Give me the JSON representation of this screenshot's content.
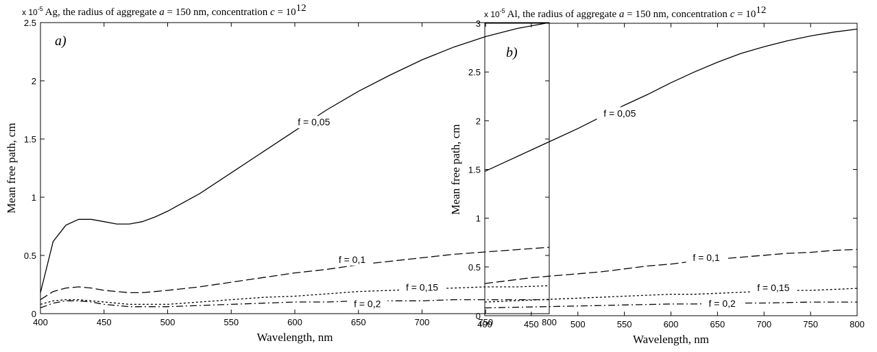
{
  "chart_data": [
    {
      "type": "line",
      "title_prefix": "Ag, the radius of aggregate ",
      "title_var_a": "a",
      "title_mid": " = 150 nm, concentration ",
      "title_var_c": "c",
      "title_eq": " = 10",
      "title_exp": "12",
      "multiplier_base": "x 10",
      "multiplier_exp": "-5",
      "panel_label": "a)",
      "xlabel": "Wavelength, nm",
      "ylabel": "Mean free path, cm",
      "xlim": [
        400,
        800
      ],
      "ylim": [
        0,
        2.5
      ],
      "xticks": [
        "400",
        "450",
        "500",
        "550",
        "600",
        "650",
        "700",
        "750",
        "800"
      ],
      "yticks": [
        "0",
        "0.5",
        "1",
        "1.5",
        "2",
        "2.5"
      ],
      "grid": false,
      "x": [
        400,
        410,
        420,
        430,
        440,
        450,
        460,
        470,
        480,
        490,
        500,
        525,
        550,
        575,
        600,
        625,
        650,
        675,
        700,
        725,
        750,
        775,
        800
      ],
      "series": [
        {
          "name": "f = 0,05",
          "dash": "solid",
          "values": [
            0.18,
            0.62,
            0.76,
            0.81,
            0.81,
            0.79,
            0.77,
            0.77,
            0.79,
            0.83,
            0.88,
            1.03,
            1.21,
            1.39,
            1.57,
            1.75,
            1.91,
            2.05,
            2.18,
            2.29,
            2.38,
            2.45,
            2.5
          ]
        },
        {
          "name": "f = 0,1",
          "dash": "dash",
          "values": [
            0.12,
            0.19,
            0.22,
            0.23,
            0.22,
            0.2,
            0.19,
            0.18,
            0.18,
            0.19,
            0.2,
            0.23,
            0.27,
            0.31,
            0.35,
            0.38,
            0.42,
            0.45,
            0.48,
            0.51,
            0.53,
            0.55,
            0.57
          ]
        },
        {
          "name": "f = 0,15",
          "dash": "dot",
          "values": [
            0.08,
            0.11,
            0.12,
            0.12,
            0.11,
            0.1,
            0.09,
            0.08,
            0.08,
            0.08,
            0.08,
            0.1,
            0.12,
            0.14,
            0.15,
            0.17,
            0.19,
            0.2,
            0.21,
            0.22,
            0.23,
            0.23,
            0.24
          ]
        },
        {
          "name": "f = 0,2",
          "dash": "dashdot",
          "values": [
            0.05,
            0.09,
            0.11,
            0.11,
            0.1,
            0.08,
            0.07,
            0.06,
            0.06,
            0.06,
            0.06,
            0.07,
            0.08,
            0.09,
            0.1,
            0.1,
            0.11,
            0.11,
            0.11,
            0.12,
            0.12,
            0.12,
            0.12
          ]
        }
      ],
      "annotations": [
        {
          "text": "f = 0,05",
          "x": 615,
          "y": 1.64
        },
        {
          "text": "f = 0,1",
          "x": 645,
          "y": 0.46
        },
        {
          "text": "f = 0,15",
          "x": 700,
          "y": 0.22
        },
        {
          "text": "f = 0,2",
          "x": 657,
          "y": 0.08
        }
      ]
    },
    {
      "type": "line",
      "title_prefix": "Al, the radius of aggregate ",
      "title_var_a": "a",
      "title_mid": " = 150 nm, concentration ",
      "title_var_c": "c",
      "title_eq": " = 10",
      "title_exp": "12",
      "multiplier_base": "x 10",
      "multiplier_exp": "-5",
      "panel_label": "b)",
      "xlabel": "Wavelength, nm",
      "ylabel": "Mean free path, cm",
      "xlim": [
        400,
        800
      ],
      "ylim": [
        0,
        3
      ],
      "xticks": [
        "400",
        "450",
        "500",
        "550",
        "600",
        "650",
        "700",
        "750",
        "800"
      ],
      "yticks": [
        "0",
        "0.5",
        "1",
        "1.5",
        "2",
        "2.5",
        "3"
      ],
      "grid": false,
      "x": [
        400,
        425,
        450,
        475,
        500,
        525,
        550,
        575,
        600,
        625,
        650,
        675,
        700,
        725,
        750,
        775,
        800
      ],
      "series": [
        {
          "name": "f = 0,05",
          "dash": "solid",
          "values": [
            1.48,
            1.59,
            1.7,
            1.81,
            1.92,
            2.04,
            2.16,
            2.27,
            2.39,
            2.5,
            2.6,
            2.69,
            2.76,
            2.82,
            2.87,
            2.91,
            2.94
          ]
        },
        {
          "name": "f = 0,1",
          "dash": "dash",
          "values": [
            0.33,
            0.36,
            0.39,
            0.41,
            0.43,
            0.45,
            0.48,
            0.51,
            0.53,
            0.56,
            0.58,
            0.6,
            0.62,
            0.64,
            0.65,
            0.67,
            0.68
          ]
        },
        {
          "name": "f = 0,15",
          "dash": "dot",
          "values": [
            0.14,
            0.15,
            0.16,
            0.17,
            0.18,
            0.19,
            0.2,
            0.21,
            0.22,
            0.22,
            0.23,
            0.24,
            0.25,
            0.26,
            0.26,
            0.27,
            0.28
          ]
        },
        {
          "name": "f = 0,2",
          "dash": "dashdot",
          "values": [
            0.08,
            0.085,
            0.09,
            0.095,
            0.1,
            0.105,
            0.11,
            0.115,
            0.12,
            0.12,
            0.125,
            0.13,
            0.13,
            0.135,
            0.14,
            0.14,
            0.14
          ]
        }
      ],
      "annotations": [
        {
          "text": "f = 0,05",
          "x": 545,
          "y": 2.07
        },
        {
          "text": "f = 0,1",
          "x": 638,
          "y": 0.59
        },
        {
          "text": "f = 0,15",
          "x": 710,
          "y": 0.28
        },
        {
          "text": "f = 0,2",
          "x": 655,
          "y": 0.12
        }
      ]
    }
  ]
}
